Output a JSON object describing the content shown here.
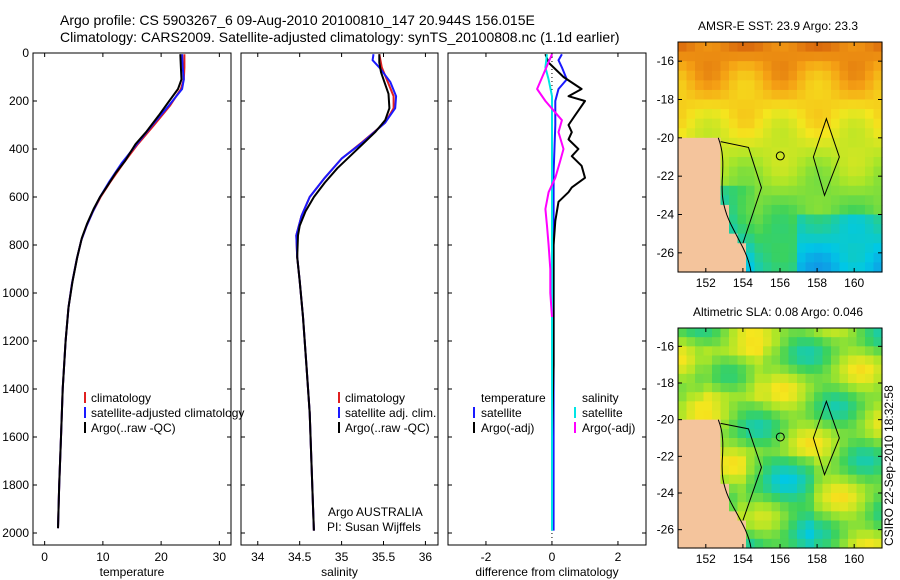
{
  "title": {
    "line1": "Argo profile: CS 5903267_6 09-Aug-2010 20100810_147 20.944S 156.015E",
    "line2": "Climatology: CARS2009. Satellite-adjusted climatology: synTS_20100808.nc (1.1d earlier)"
  },
  "colors": {
    "climatology": "#e02020",
    "satellite": "#1a1aff",
    "argo": "#000000",
    "salinity_satellite": "#00e5e5",
    "salinity_argo": "#ff00ff",
    "land": "#f4c49c"
  },
  "chart_data": [
    {
      "type": "line",
      "title": "",
      "xlabel": "temperature",
      "ylabel": "",
      "xlim": [
        -2,
        32
      ],
      "ylim": [
        2050,
        0
      ],
      "xticks": [
        "0",
        "10",
        "20",
        "30"
      ],
      "yticks": [
        "0",
        "200",
        "400",
        "600",
        "800",
        "1000",
        "1200",
        "1400",
        "1600",
        "1800",
        "2000"
      ],
      "legend": [
        "climatology",
        "satellite-adjusted climatology",
        "Argo(..raw -QC)"
      ],
      "series": [
        {
          "name": "climatology",
          "color": "#e02020",
          "points": [
            [
              24.0,
              5
            ],
            [
              24.0,
              60
            ],
            [
              23.9,
              110
            ],
            [
              23.4,
              150
            ],
            [
              21.5,
              220
            ],
            [
              18.8,
              300
            ],
            [
              16.0,
              380
            ],
            [
              13.5,
              460
            ],
            [
              11.2,
              540
            ],
            [
              9.6,
              600
            ],
            [
              8.3,
              660
            ],
            [
              7.2,
              720
            ],
            [
              6.3,
              780
            ],
            [
              5.5,
              860
            ],
            [
              4.7,
              960
            ],
            [
              4.1,
              1060
            ],
            [
              3.6,
              1200
            ],
            [
              3.1,
              1400
            ],
            [
              2.8,
              1600
            ],
            [
              2.5,
              1800
            ],
            [
              2.3,
              1980
            ]
          ]
        },
        {
          "name": "satellite-adjusted climatology",
          "color": "#1a1aff",
          "points": [
            [
              23.6,
              5
            ],
            [
              23.7,
              60
            ],
            [
              23.9,
              110
            ],
            [
              23.6,
              150
            ],
            [
              21.3,
              220
            ],
            [
              18.5,
              300
            ],
            [
              15.8,
              380
            ],
            [
              13.2,
              460
            ],
            [
              11.0,
              540
            ],
            [
              9.5,
              600
            ],
            [
              8.3,
              660
            ],
            [
              7.2,
              720
            ],
            [
              6.3,
              780
            ],
            [
              5.5,
              860
            ],
            [
              4.7,
              960
            ],
            [
              4.1,
              1060
            ],
            [
              3.6,
              1200
            ],
            [
              3.1,
              1400
            ],
            [
              2.8,
              1600
            ],
            [
              2.5,
              1800
            ],
            [
              2.3,
              1980
            ]
          ]
        },
        {
          "name": "Argo(..raw -QC)",
          "color": "#000000",
          "points": [
            [
              23.3,
              5
            ],
            [
              23.4,
              60
            ],
            [
              23.5,
              110
            ],
            [
              22.9,
              150
            ],
            [
              21.1,
              210
            ],
            [
              19.6,
              260
            ],
            [
              17.4,
              330
            ],
            [
              15.6,
              380
            ],
            [
              13.8,
              450
            ],
            [
              12.2,
              500
            ],
            [
              10.6,
              560
            ],
            [
              9.5,
              600
            ],
            [
              8.4,
              650
            ],
            [
              7.3,
              710
            ],
            [
              6.4,
              770
            ],
            [
              5.6,
              850
            ],
            [
              4.8,
              950
            ],
            [
              4.1,
              1060
            ],
            [
              3.6,
              1200
            ],
            [
              3.1,
              1400
            ],
            [
              2.8,
              1600
            ],
            [
              2.5,
              1800
            ],
            [
              2.3,
              1980
            ]
          ]
        }
      ]
    },
    {
      "type": "line",
      "title": "",
      "xlabel": "salinity",
      "ylabel": "",
      "xlim": [
        33.8,
        36.15
      ],
      "ylim": [
        2050,
        0
      ],
      "xticks": [
        "34",
        "34.5",
        "35",
        "35.5",
        "36"
      ],
      "yticks": [],
      "legend": [
        "climatology",
        "satellite adj. clim.",
        "Argo(..raw -QC)"
      ],
      "annotations": [
        "Argo AUSTRALIA",
        "PI: Susan Wijffels"
      ],
      "series": [
        {
          "name": "climatology",
          "color": "#e02020",
          "points": [
            [
              35.45,
              5
            ],
            [
              35.48,
              60
            ],
            [
              35.55,
              120
            ],
            [
              35.62,
              180
            ],
            [
              35.62,
              230
            ],
            [
              35.52,
              290
            ],
            [
              35.25,
              370
            ],
            [
              35.0,
              440
            ],
            [
              34.8,
              520
            ],
            [
              34.62,
              600
            ],
            [
              34.52,
              680
            ],
            [
              34.46,
              760
            ],
            [
              34.47,
              850
            ],
            [
              34.5,
              950
            ],
            [
              34.54,
              1100
            ],
            [
              34.58,
              1300
            ],
            [
              34.62,
              1500
            ],
            [
              34.64,
              1700
            ],
            [
              34.66,
              1900
            ],
            [
              34.67,
              1990
            ]
          ]
        },
        {
          "name": "satellite adj. clim.",
          "color": "#1a1aff",
          "points": [
            [
              35.38,
              5
            ],
            [
              35.37,
              30
            ],
            [
              35.45,
              60
            ],
            [
              35.58,
              120
            ],
            [
              35.65,
              180
            ],
            [
              35.64,
              230
            ],
            [
              35.52,
              290
            ],
            [
              35.26,
              370
            ],
            [
              35.0,
              440
            ],
            [
              34.8,
              520
            ],
            [
              34.62,
              600
            ],
            [
              34.52,
              680
            ],
            [
              34.46,
              760
            ],
            [
              34.47,
              850
            ],
            [
              34.5,
              950
            ],
            [
              34.54,
              1100
            ],
            [
              34.58,
              1300
            ],
            [
              34.62,
              1500
            ],
            [
              34.64,
              1700
            ],
            [
              34.66,
              1900
            ],
            [
              34.67,
              1990
            ]
          ]
        },
        {
          "name": "Argo(..raw -QC)",
          "color": "#000000",
          "points": [
            [
              35.45,
              5
            ],
            [
              35.45,
              40
            ],
            [
              35.47,
              80
            ],
            [
              35.5,
              110
            ],
            [
              35.56,
              170
            ],
            [
              35.57,
              230
            ],
            [
              35.52,
              280
            ],
            [
              35.4,
              330
            ],
            [
              35.25,
              380
            ],
            [
              35.1,
              430
            ],
            [
              34.95,
              480
            ],
            [
              34.8,
              540
            ],
            [
              34.67,
              600
            ],
            [
              34.57,
              660
            ],
            [
              34.5,
              720
            ],
            [
              34.48,
              760
            ],
            [
              34.47,
              850
            ],
            [
              34.5,
              950
            ],
            [
              34.54,
              1100
            ],
            [
              34.58,
              1300
            ],
            [
              34.62,
              1500
            ],
            [
              34.64,
              1700
            ],
            [
              34.66,
              1900
            ],
            [
              34.67,
              1990
            ]
          ]
        }
      ]
    },
    {
      "type": "line",
      "title": "",
      "xlabel": "difference from climatology",
      "ylabel": "",
      "xlim": [
        -3.15,
        2.85
      ],
      "ylim": [
        2050,
        0
      ],
      "xticks": [
        "-2",
        "0",
        "2"
      ],
      "yticks": [],
      "legend": [
        "temperature",
        "satellite",
        "Argo(-adj)",
        "salinity",
        "satellite",
        "Argo(-adj)"
      ],
      "series": [
        {
          "name": "temperature satellite",
          "color": "#1a1aff",
          "points": [
            [
              0.3,
              5
            ],
            [
              0.2,
              30
            ],
            [
              0.3,
              60
            ],
            [
              0.45,
              110
            ],
            [
              0.2,
              150
            ],
            [
              0.1,
              200
            ],
            [
              0.1,
              300
            ],
            [
              0.05,
              500
            ],
            [
              0.05,
              800
            ],
            [
              0.05,
              1200
            ],
            [
              0.05,
              1600
            ],
            [
              0.05,
              1990
            ]
          ]
        },
        {
          "name": "temperature Argo(-adj)",
          "color": "#000000",
          "points": [
            [
              -0.2,
              5
            ],
            [
              -0.1,
              40
            ],
            [
              0.35,
              100
            ],
            [
              0.9,
              150
            ],
            [
              0.5,
              180
            ],
            [
              1.0,
              200
            ],
            [
              0.8,
              240
            ],
            [
              0.7,
              260
            ],
            [
              0.5,
              300
            ],
            [
              0.6,
              330
            ],
            [
              0.5,
              360
            ],
            [
              0.8,
              400
            ],
            [
              0.6,
              430
            ],
            [
              0.9,
              470
            ],
            [
              1.0,
              520
            ],
            [
              0.6,
              560
            ],
            [
              0.5,
              580
            ],
            [
              0.2,
              620
            ],
            [
              0.1,
              700
            ],
            [
              0.05,
              800
            ],
            [
              0.05,
              1000
            ],
            [
              0.05,
              1300
            ],
            [
              0.0,
              1600
            ],
            [
              0.0,
              1990
            ]
          ]
        },
        {
          "name": "salinity satellite",
          "color": "#00e5e5",
          "points": [
            [
              -0.15,
              5
            ],
            [
              -0.2,
              60
            ],
            [
              -0.1,
              110
            ],
            [
              0.0,
              180
            ],
            [
              0.0,
              300
            ],
            [
              0.0,
              500
            ],
            [
              0.0,
              800
            ],
            [
              0.0,
              1200
            ],
            [
              0.0,
              1600
            ],
            [
              0.0,
              1990
            ]
          ]
        },
        {
          "name": "salinity Argo(-adj)",
          "color": "#ff00ff",
          "points": [
            [
              0.0,
              5
            ],
            [
              -0.45,
              150
            ],
            [
              -0.2,
              200
            ],
            [
              0.3,
              280
            ],
            [
              0.2,
              330
            ],
            [
              0.35,
              400
            ],
            [
              0.25,
              450
            ],
            [
              0.1,
              520
            ],
            [
              -0.1,
              580
            ],
            [
              -0.2,
              650
            ],
            [
              -0.15,
              720
            ],
            [
              -0.1,
              800
            ],
            [
              -0.05,
              900
            ],
            [
              -0.05,
              1000
            ],
            [
              0.0,
              1100
            ]
          ]
        }
      ]
    },
    {
      "type": "heatmap",
      "title": "AMSR-E SST: 23.9 Argo: 23.3",
      "xlabel": "",
      "ylabel": "",
      "xlim": [
        150.5,
        161.5
      ],
      "ylim": [
        -27,
        -15
      ],
      "xticks": [
        "152",
        "154",
        "156",
        "158",
        "160"
      ],
      "yticks": [
        "-16",
        "-18",
        "-20",
        "-22",
        "-24",
        "-26"
      ],
      "argo_location": {
        "lon": 156.015,
        "lat": -20.944
      }
    },
    {
      "type": "heatmap",
      "title": "Altimetric SLA: 0.08 Argo: 0.046",
      "xlabel": "",
      "ylabel": "",
      "xlim": [
        150.5,
        161.5
      ],
      "ylim": [
        -27,
        -15
      ],
      "xticks": [
        "152",
        "154",
        "156",
        "158",
        "160"
      ],
      "yticks": [
        "-16",
        "-18",
        "-20",
        "-22",
        "-24",
        "-26"
      ],
      "argo_location": {
        "lon": 156.015,
        "lat": -20.944
      }
    }
  ],
  "watermark": "CSIRO 22-Sep-2010 18:32:58"
}
